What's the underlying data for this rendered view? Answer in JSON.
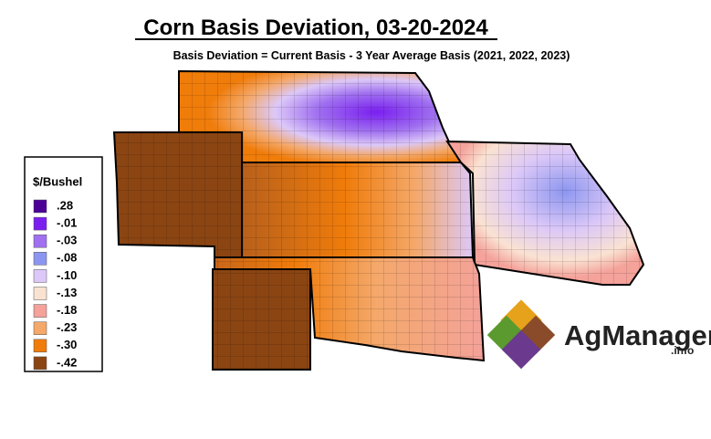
{
  "header": {
    "title": "Corn Basis Deviation, 03-20-2024",
    "subtitle": "Basis Deviation = Current Basis - 3 Year Average Basis (2021, 2022, 2023)"
  },
  "legend": {
    "title": "$/Bushel",
    "items": [
      {
        "label": ".28",
        "color": "#4b0096"
      },
      {
        "label": "-.01",
        "color": "#7a1ff0"
      },
      {
        "label": "-.03",
        "color": "#a070f0"
      },
      {
        "label": "-.08",
        "color": "#8c96f0"
      },
      {
        "label": "-.10",
        "color": "#dcc8f8"
      },
      {
        "label": "-.13",
        "color": "#fae2d2"
      },
      {
        "label": "-.18",
        "color": "#f4a29a"
      },
      {
        "label": "-.23",
        "color": "#f4a86a"
      },
      {
        "label": "-.30",
        "color": "#f07c0a"
      },
      {
        "label": "-.42",
        "color": "#8b4513"
      }
    ]
  },
  "logo": {
    "name": "AgManager",
    "suffix": ".info"
  }
}
